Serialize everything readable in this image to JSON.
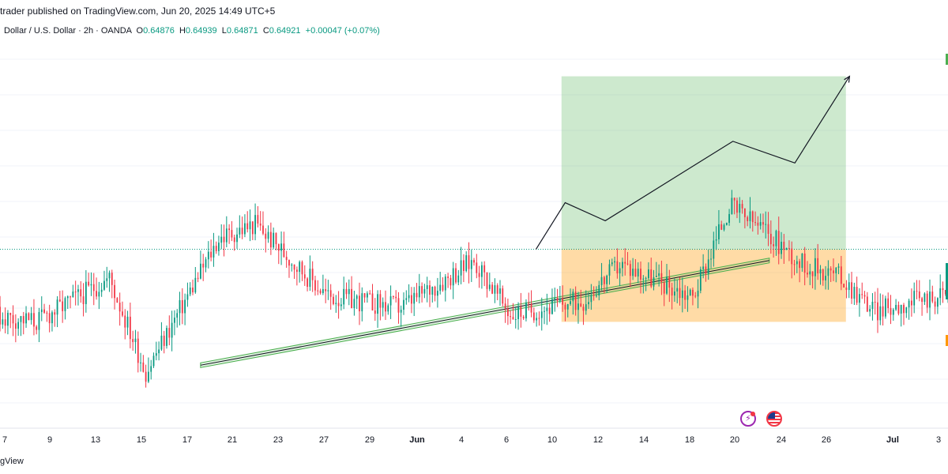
{
  "header": {
    "publisher_line": "trader published on TradingView.com, Jun 20, 2025 14:49 UTC+5",
    "symbol_line": "Dollar / U.S. Dollar · 2h · OANDA",
    "ohlc": {
      "o_label": "O",
      "o_value": "0.64876",
      "h_label": "H",
      "h_value": "0.64939",
      "l_label": "L",
      "l_value": "0.64871",
      "c_label": "C",
      "c_value": "0.64921",
      "change": "+0.00047 (+0.07%)"
    }
  },
  "brand": "gView",
  "colors": {
    "up": "#089981",
    "down": "#f23645",
    "channel_stroke": "#4caf50",
    "channel_fill": "rgba(76,175,80,0.18)",
    "profit_zone": "rgba(76,175,80,0.28)",
    "loss_zone": "rgba(255,152,0,0.35)",
    "entry_line": "#089981",
    "projection": "#131722"
  },
  "chart_data": {
    "type": "candlestick",
    "timeframe": "2h",
    "x_axis_ticks": [
      {
        "label": "7",
        "month": false
      },
      {
        "label": "9",
        "month": false
      },
      {
        "label": "13",
        "month": false
      },
      {
        "label": "15",
        "month": false
      },
      {
        "label": "17",
        "month": false
      },
      {
        "label": "21",
        "month": false
      },
      {
        "label": "23",
        "month": false
      },
      {
        "label": "27",
        "month": false
      },
      {
        "label": "29",
        "month": false
      },
      {
        "label": "Jun",
        "month": true
      },
      {
        "label": "4",
        "month": false
      },
      {
        "label": "6",
        "month": false
      },
      {
        "label": "10",
        "month": false
      },
      {
        "label": "12",
        "month": false
      },
      {
        "label": "14",
        "month": false
      },
      {
        "label": "18",
        "month": false
      },
      {
        "label": "20",
        "month": false
      },
      {
        "label": "24",
        "month": false
      },
      {
        "label": "26",
        "month": false
      },
      {
        "label": "Jul",
        "month": true
      },
      {
        "label": "3",
        "month": false
      }
    ],
    "price_path": [
      [
        0,
        0.6497
      ],
      [
        2,
        0.65
      ],
      [
        4,
        0.6485
      ],
      [
        6,
        0.6475
      ],
      [
        8,
        0.6472
      ],
      [
        10,
        0.6484
      ],
      [
        11,
        0.6458
      ],
      [
        13,
        0.6495
      ],
      [
        14,
        0.6499
      ],
      [
        16,
        0.6479
      ],
      [
        18,
        0.6476
      ],
      [
        20,
        0.6489
      ],
      [
        21,
        0.6474
      ],
      [
        23,
        0.6478
      ],
      [
        24,
        0.6488
      ],
      [
        26,
        0.6479
      ],
      [
        27,
        0.6504
      ],
      [
        28,
        0.6497
      ],
      [
        29,
        0.6488
      ],
      [
        30,
        0.6485
      ],
      [
        31,
        0.6475
      ],
      [
        33,
        0.648
      ],
      [
        35,
        0.6474
      ],
      [
        36,
        0.649
      ],
      [
        37,
        0.6488
      ],
      [
        38,
        0.6479
      ],
      [
        40,
        0.6499
      ],
      [
        41,
        0.6504
      ],
      [
        42,
        0.65
      ],
      [
        44,
        0.6502
      ],
      [
        45,
        0.6493
      ],
      [
        46,
        0.6503
      ],
      [
        48,
        0.65
      ],
      [
        50,
        0.6506
      ],
      [
        52,
        0.6505
      ],
      [
        53,
        0.6492
      ],
      [
        54,
        0.6499
      ],
      [
        55,
        0.6503
      ],
      [
        56,
        0.6494
      ],
      [
        57,
        0.6489
      ],
      [
        59,
        0.6485
      ],
      [
        60,
        0.649
      ],
      [
        61,
        0.6495
      ],
      [
        62,
        0.6492
      ]
    ],
    "levels": {
      "entry": 0.64921,
      "target": 0.654,
      "stop": 0.6472
    },
    "trendline": {
      "start": [
        12.5,
        0.646
      ],
      "end": [
        28.1,
        0.6489
      ]
    },
    "projection_path": [
      [
        21.7,
        0.64921
      ],
      [
        22.5,
        0.6505
      ],
      [
        23.6,
        0.65
      ],
      [
        27.1,
        0.6522
      ],
      [
        28.8,
        0.6516
      ],
      [
        30.3,
        0.654
      ]
    ],
    "zone": {
      "x_start": 22.4,
      "x_end": 30.2
    },
    "x_domain": [
      7.0,
      33.0
    ],
    "y_domain": [
      0.6443,
      0.6548
    ]
  }
}
